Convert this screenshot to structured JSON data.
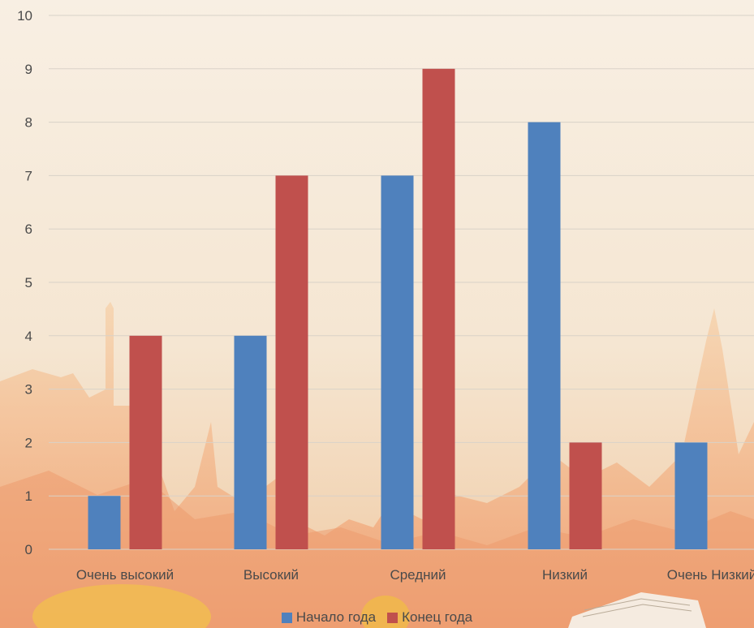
{
  "chart_data": {
    "type": "bar",
    "categories": [
      "Очень высокий",
      "Высокий",
      "Средний",
      "Низкий",
      "Очень Низкий"
    ],
    "series": [
      {
        "name": "Начало года",
        "values": [
          1,
          4,
          7,
          8,
          2
        ],
        "color": "#4f81bd"
      },
      {
        "name": "Конец года",
        "values": [
          4,
          7,
          9,
          2,
          0
        ],
        "color": "#c0504d"
      }
    ],
    "ylim": [
      0,
      10
    ],
    "yticks": [
      "0",
      "1",
      "2",
      "3",
      "4",
      "5",
      "6",
      "7",
      "8",
      "9",
      "10"
    ],
    "grid": true,
    "legend_position": "bottom-center",
    "title": "",
    "xlabel": "",
    "ylabel": ""
  },
  "legend": {
    "items": [
      {
        "label": "Начало года",
        "color": "#4f81bd"
      },
      {
        "label": "Конец года",
        "color": "#c0504d"
      }
    ]
  },
  "background": {
    "base_color": "#f6ead9",
    "skyline_color": "#f2b27c",
    "ground_color": "#e98f6a"
  }
}
